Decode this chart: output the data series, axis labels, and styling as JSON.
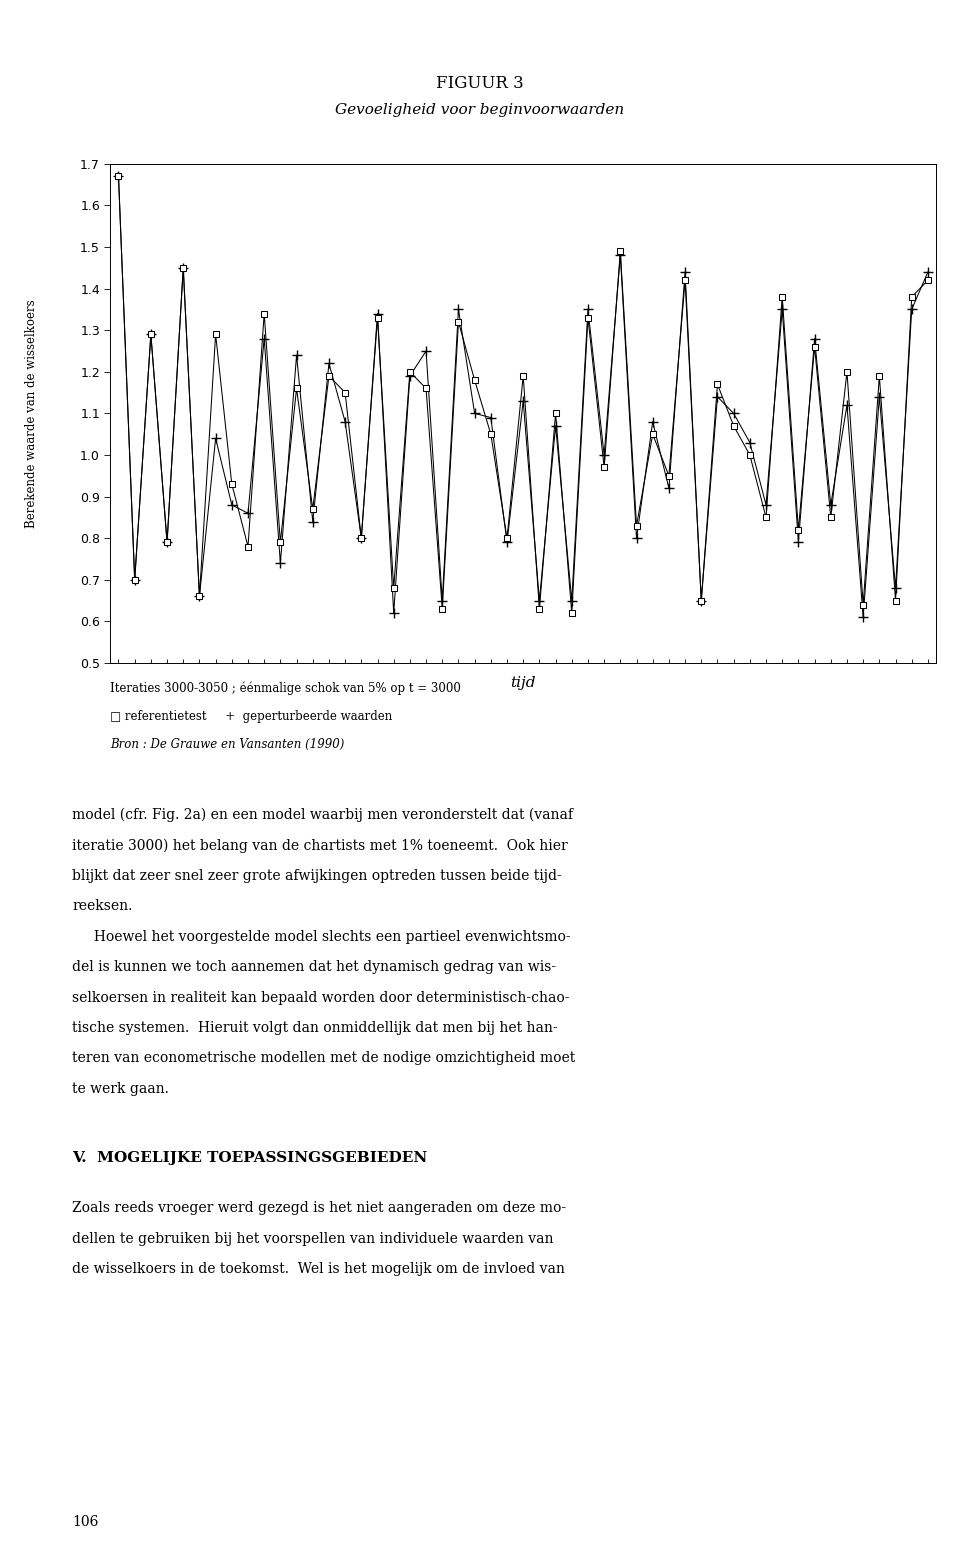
{
  "title": "FIGUUR 3",
  "subtitle": "Gevoeligheid voor beginvoorwaarden",
  "xlabel": "tijd",
  "ylabel": "Berekende waarde van de wisselkoers",
  "ylim": [
    0.5,
    1.7
  ],
  "yticks": [
    0.5,
    0.6,
    0.7,
    0.8,
    0.9,
    1.0,
    1.1,
    1.2,
    1.3,
    1.4,
    1.5,
    1.6,
    1.7
  ],
  "caption_line1": "Iteraties 3000-3050 ; éénmalige schok van 5% op t = 3000",
  "caption_line2": "□ referentietest     +  geperturbeerde waarden",
  "source": "Bron : De Grauwe en Vansanten (1990)",
  "series1": [
    1.67,
    0.7,
    1.29,
    0.79,
    1.45,
    0.66,
    1.29,
    0.93,
    0.78,
    1.34,
    0.79,
    1.16,
    0.87,
    1.19,
    1.15,
    0.8,
    1.33,
    0.68,
    1.2,
    1.16,
    0.63,
    1.32,
    1.18,
    1.05,
    0.8,
    1.19,
    0.63,
    1.1,
    0.62,
    1.33,
    0.97,
    1.49,
    0.83,
    1.05,
    0.95,
    1.42,
    0.65,
    1.17,
    1.07,
    1.0,
    0.85,
    1.38,
    0.82,
    1.26,
    0.85,
    1.2,
    0.64,
    1.19,
    0.65,
    1.38,
    1.42
  ],
  "series2": [
    1.67,
    0.7,
    1.29,
    0.79,
    1.45,
    0.66,
    1.04,
    0.88,
    0.86,
    1.28,
    0.74,
    1.24,
    0.84,
    1.22,
    1.08,
    0.8,
    1.34,
    0.62,
    1.19,
    1.25,
    0.65,
    1.35,
    1.1,
    1.09,
    0.79,
    1.13,
    0.65,
    1.07,
    0.65,
    1.35,
    1.0,
    1.48,
    0.8,
    1.08,
    0.92,
    1.44,
    0.65,
    1.14,
    1.1,
    1.03,
    0.88,
    1.35,
    0.79,
    1.28,
    0.88,
    1.12,
    0.61,
    1.14,
    0.68,
    1.35,
    1.44
  ],
  "body_lines": [
    "model (cfr. Fig. 2a) en een model waarbij men veronderstelt dat (vanaf",
    "iteratie 3000) het belang van de chartists met 1% toeneemt.  Ook hier",
    "blijkt dat zeer snel zeer grote afwijkingen optreden tussen beide tijd-",
    "reeksen.",
    "     Hoewel het voorgestelde model slechts een partieel evenwichtsmo-",
    "del is kunnen we toch aannemen dat het dynamisch gedrag van wis-",
    "selkoersen in realiteit kan bepaald worden door deterministisch-chao-",
    "tische systemen.  Hieruit volgt dan onmiddellijk dat men bij het han-",
    "teren van econometrische modellen met de nodige omzichtigheid moet",
    "te werk gaan."
  ],
  "section_title": "V.  MOGELIJKE TOEPASSINGSGEBIEDEN",
  "final_lines": [
    "Zoals reeds vroeger werd gezegd is het niet aangeraden om deze mo-",
    "dellen te gebruiken bij het voorspellen van individuele waarden van",
    "de wisselkoers in de toekomst.  Wel is het mogelijk om de invloed van"
  ],
  "page_number": "106",
  "figsize": [
    9.6,
    15.6
  ],
  "dpi": 100
}
